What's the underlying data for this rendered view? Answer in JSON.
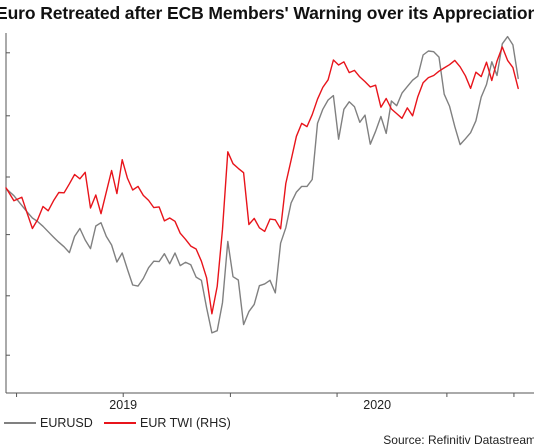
{
  "title": "Euro Retreated after ECB Members' Warning over its Appreciation",
  "source": "Source: Refinitiv Datastream",
  "chart_data": {
    "type": "line",
    "title": "Euro Retreated after ECB Members' Warning over its Appreciation",
    "x_tick_labels": [
      "2019",
      "2020"
    ],
    "x_range": [
      0,
      100
    ],
    "ylim": [
      0,
      100
    ],
    "grid": false,
    "legend_position": "bottom-left",
    "series": [
      {
        "name": "EURUSD",
        "color": "#808080",
        "axis": "left",
        "x": [
          0,
          1.5,
          3,
          4,
          5,
          6,
          7,
          8,
          9,
          10,
          11,
          12,
          13,
          14,
          15,
          16,
          17,
          18,
          19,
          20,
          21,
          22,
          23,
          24,
          25,
          26,
          27,
          28,
          29,
          30,
          31,
          32,
          33,
          34,
          35,
          36,
          37,
          38,
          39,
          40,
          41,
          42,
          43,
          44,
          45,
          46,
          47,
          48,
          49,
          50,
          51,
          52,
          53,
          54,
          55,
          56,
          57,
          58,
          59,
          60,
          61,
          62,
          63,
          64,
          65,
          66,
          67,
          68,
          69,
          70,
          71,
          72,
          73,
          74,
          75,
          76,
          77,
          78,
          79,
          80,
          81,
          82,
          83,
          84,
          85,
          86,
          87,
          88,
          89,
          90,
          91,
          92,
          93,
          94,
          95,
          96,
          97
        ],
        "values": [
          56.8,
          54.8,
          52.1,
          50.3,
          48.6,
          47.6,
          46.3,
          44.8,
          43.3,
          41.9,
          40.6,
          39.0,
          43.5,
          45.7,
          42.5,
          40.1,
          46.4,
          47.3,
          43.5,
          41.1,
          36.4,
          38.9,
          34.4,
          30.0,
          29.7,
          31.8,
          34.8,
          36.6,
          36.5,
          38.7,
          35.9,
          38.9,
          35.4,
          36.3,
          35.6,
          32.2,
          31.3,
          23.7,
          16.7,
          17.3,
          25.1,
          42.1,
          32.3,
          31.4,
          19.0,
          22.6,
          24.6,
          29.8,
          30.3,
          31.3,
          27.8,
          41.6,
          45.9,
          52.8,
          55.8,
          57.4,
          57.4,
          59.3,
          74.9,
          78.8,
          81.4,
          82.6,
          70.5,
          78.8,
          80.9,
          79.5,
          75.2,
          77.2,
          69.1,
          72.7,
          76.8,
          72.1,
          81.1,
          79.8,
          83.3,
          85.1,
          86.9,
          88.0,
          93.9,
          95.0,
          94.8,
          93.3,
          83.0,
          79.7,
          74.0,
          69.0,
          70.6,
          72.3,
          75.6,
          82.2,
          85.7,
          92.0,
          88.2,
          97.0,
          99.0,
          96.7,
          87.4
        ]
      },
      {
        "name": "EUR TWI (RHS)",
        "color": "#e8141b",
        "axis": "right",
        "x": [
          0,
          1.5,
          3,
          4,
          5,
          6,
          7,
          8,
          9,
          10,
          11,
          12,
          13,
          14,
          15,
          16,
          17,
          18,
          19,
          20,
          21,
          22,
          23,
          24,
          25,
          26,
          27,
          28,
          29,
          30,
          31,
          32,
          33,
          34,
          35,
          36,
          37,
          38,
          39,
          40,
          41,
          42,
          43,
          44,
          45,
          46,
          47,
          48,
          49,
          50,
          51,
          52,
          53,
          54,
          55,
          56,
          57,
          58,
          59,
          60,
          61,
          62,
          63,
          64,
          65,
          66,
          67,
          68,
          69,
          70,
          71,
          72,
          73,
          74,
          75,
          76,
          77,
          78,
          79,
          80,
          81,
          82,
          83,
          84,
          85,
          86,
          87,
          88,
          89,
          90,
          91,
          92,
          93,
          94,
          95,
          96,
          97
        ],
        "values": [
          57.0,
          53.4,
          54.4,
          50.0,
          45.7,
          48.2,
          51.8,
          50.6,
          53.4,
          55.7,
          55.6,
          58.1,
          60.7,
          59.5,
          61.3,
          51.4,
          55.0,
          49.8,
          55.8,
          61.8,
          55.4,
          64.8,
          59.7,
          56.4,
          57.4,
          54.9,
          53.5,
          51.5,
          51.7,
          47.8,
          48.6,
          47.7,
          44.4,
          42.7,
          40.8,
          40.0,
          36.6,
          32.0,
          22.0,
          29.6,
          45.5,
          67.0,
          63.7,
          62.4,
          61.2,
          46.8,
          48.5,
          45.9,
          44.9,
          48.3,
          48.1,
          45.6,
          58.2,
          64.7,
          71.3,
          74.9,
          74.0,
          77.3,
          81.6,
          84.9,
          87.0,
          92.5,
          91.1,
          92.0,
          89.0,
          89.6,
          87.8,
          86.5,
          85.0,
          85.5,
          79.4,
          81.8,
          78.9,
          77.6,
          76.3,
          79.2,
          77.0,
          82.3,
          86.2,
          87.6,
          88.2,
          89.4,
          90.3,
          91.2,
          92.4,
          90.6,
          88.1,
          84.6,
          89.1,
          87.9,
          91.9,
          86.8,
          92.2,
          96.1,
          92.4,
          90.4,
          84.6
        ]
      }
    ]
  }
}
